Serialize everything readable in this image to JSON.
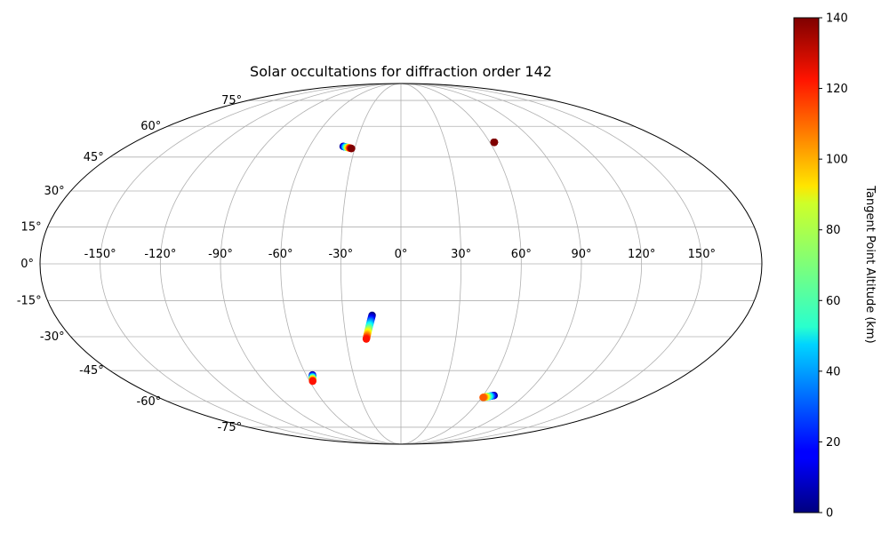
{
  "chart_data": {
    "type": "scatter",
    "projection": "mollweide",
    "title": "Solar occultations for diffraction order 142",
    "grid": true,
    "x_ticks": [
      "-150°",
      "-120°",
      "-90°",
      "-60°",
      "-30°",
      "0°",
      "30°",
      "60°",
      "90°",
      "120°",
      "150°"
    ],
    "y_ticks": [
      "75°",
      "60°",
      "45°",
      "30°",
      "15°",
      "0°",
      "-15°",
      "-30°",
      "-45°",
      "-60°",
      "-75°"
    ],
    "colorbar": {
      "label": "Tangent Point Altitude (km)",
      "colormap": "jet",
      "range": [
        0,
        140
      ],
      "ticks": [
        "0",
        "20",
        "40",
        "60",
        "80",
        "100",
        "120",
        "140"
      ]
    },
    "tracks": [
      {
        "lon_range": [
          -38,
          -32
        ],
        "lat_range": [
          50,
          49
        ],
        "alt_range": [
          0,
          140
        ]
      },
      {
        "lon_range": [
          63,
          63
        ],
        "lat_range": [
          52,
          52
        ],
        "alt_range": [
          140,
          140
        ]
      },
      {
        "lon_range": [
          -15,
          -19
        ],
        "lat_range": [
          -21,
          -31
        ],
        "alt_range": [
          0,
          120
        ]
      },
      {
        "lon_range": [
          -56,
          -58
        ],
        "lat_range": [
          -47,
          -50
        ],
        "alt_range": [
          0,
          120
        ]
      },
      {
        "lon_range": [
          68,
          61
        ],
        "lat_range": [
          -57,
          -58
        ],
        "alt_range": [
          0,
          110
        ]
      }
    ]
  }
}
